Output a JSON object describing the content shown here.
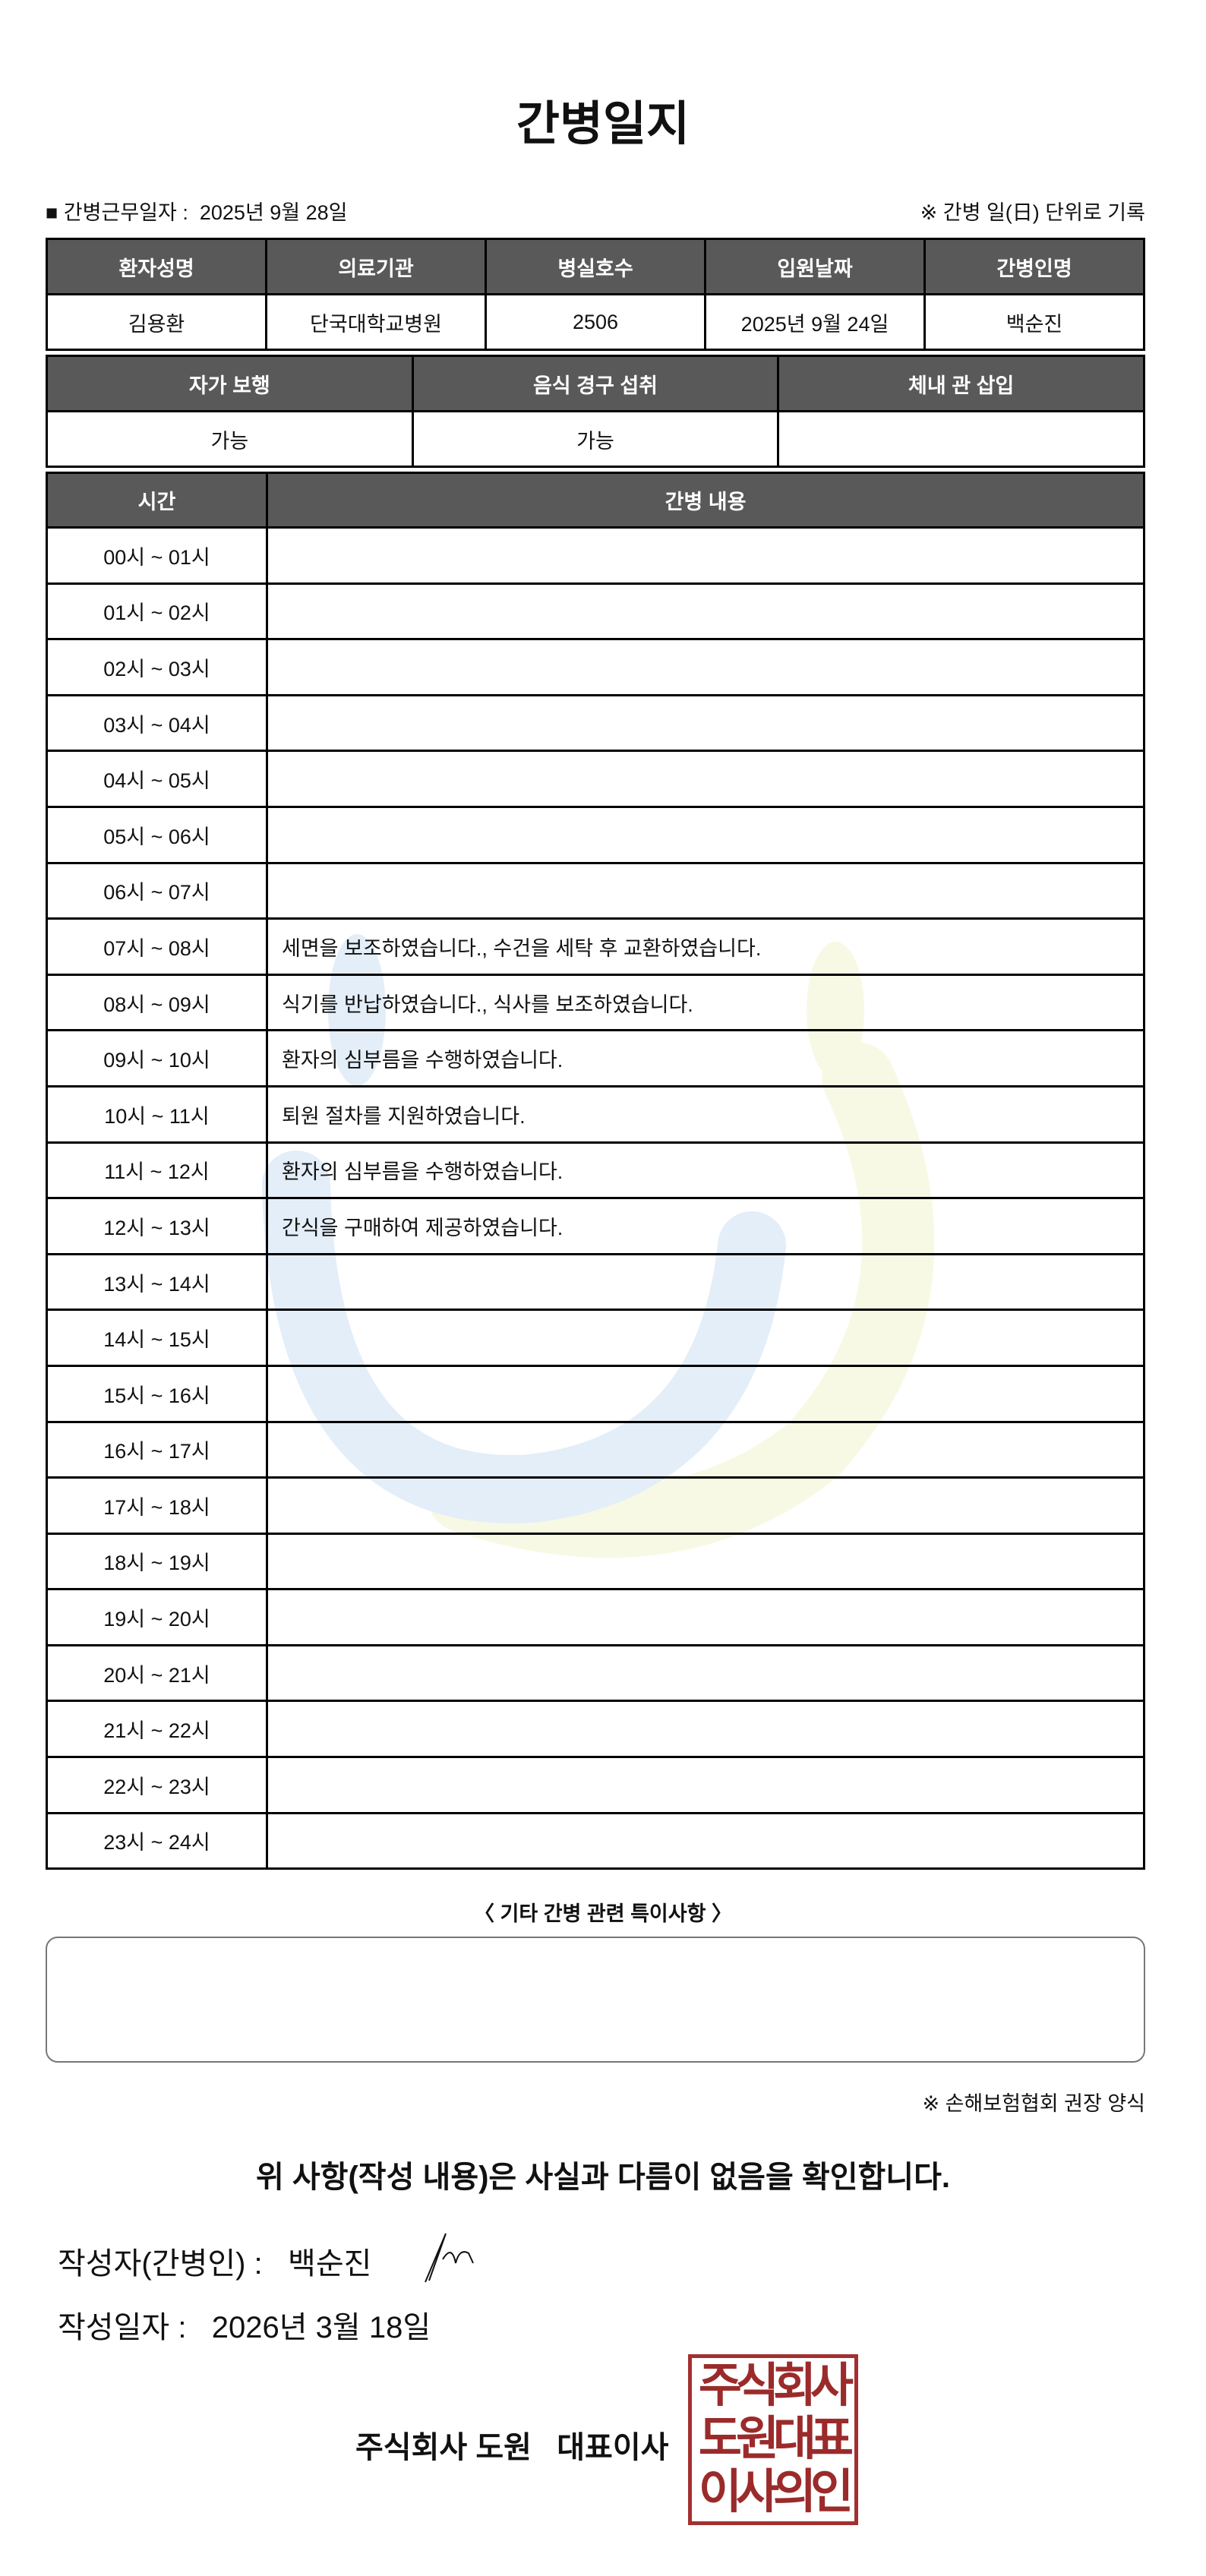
{
  "title": "간병일지",
  "work_date_label": "■ 간병근무일자 :",
  "work_date": "2025년 9월 28일",
  "record_note": "※ 간병 일(日) 단위로 기록",
  "info_table": {
    "headers": [
      "환자성명",
      "의료기관",
      "병실호수",
      "입원날짜",
      "간병인명"
    ],
    "values": [
      "김용환",
      "단국대학교병원",
      "2506",
      "2025년 9월 24일",
      "백순진"
    ]
  },
  "status_table": {
    "headers": [
      "자가 보행",
      "음식 경구 섭취",
      "체내 관 삽입"
    ],
    "values": [
      "가능",
      "가능",
      ""
    ]
  },
  "log_table": {
    "headers": [
      "시간",
      "간병 내용"
    ],
    "rows": [
      {
        "time": "00시 ~ 01시",
        "content": ""
      },
      {
        "time": "01시 ~ 02시",
        "content": ""
      },
      {
        "time": "02시 ~ 03시",
        "content": ""
      },
      {
        "time": "03시 ~ 04시",
        "content": ""
      },
      {
        "time": "04시 ~ 05시",
        "content": ""
      },
      {
        "time": "05시 ~ 06시",
        "content": ""
      },
      {
        "time": "06시 ~ 07시",
        "content": ""
      },
      {
        "time": "07시 ~ 08시",
        "content": "세면을 보조하였습니다., 수건을 세탁 후 교환하였습니다."
      },
      {
        "time": "08시 ~ 09시",
        "content": "식기를 반납하였습니다., 식사를 보조하였습니다."
      },
      {
        "time": "09시 ~ 10시",
        "content": "환자의 심부름을 수행하였습니다."
      },
      {
        "time": "10시 ~ 11시",
        "content": "퇴원 절차를 지원하였습니다."
      },
      {
        "time": "11시 ~ 12시",
        "content": "환자의 심부름을 수행하였습니다."
      },
      {
        "time": "12시 ~ 13시",
        "content": "간식을 구매하여 제공하였습니다."
      },
      {
        "time": "13시 ~ 14시",
        "content": ""
      },
      {
        "time": "14시 ~ 15시",
        "content": ""
      },
      {
        "time": "15시 ~ 16시",
        "content": ""
      },
      {
        "time": "16시 ~ 17시",
        "content": ""
      },
      {
        "time": "17시 ~ 18시",
        "content": ""
      },
      {
        "time": "18시 ~ 19시",
        "content": ""
      },
      {
        "time": "19시 ~ 20시",
        "content": ""
      },
      {
        "time": "20시 ~ 21시",
        "content": ""
      },
      {
        "time": "21시 ~ 22시",
        "content": ""
      },
      {
        "time": "22시 ~ 23시",
        "content": ""
      },
      {
        "time": "23시 ~ 24시",
        "content": ""
      }
    ]
  },
  "remarks_label": "〈 기타 간병 관련 특이사항 〉",
  "remarks": "",
  "form_note": "※ 손해보험협회 권장 양식",
  "confirmation": "위 사항(작성 내용)은 사실과 다름이 없음을 확인합니다.",
  "writer_label": "작성자(간병인) :",
  "writer_name": "백순진",
  "written_date_label": "작성일자 :",
  "written_date": "2026년 3월 18일",
  "company": "주식회사 도원   대표이사",
  "stamp_text": "주식회사 도원대표 이사의인",
  "colors": {
    "header_bg": "#595959",
    "stamp": "#a33030",
    "watermark_blue": "#e3eef8",
    "watermark_yellow": "#f7f9e4"
  }
}
